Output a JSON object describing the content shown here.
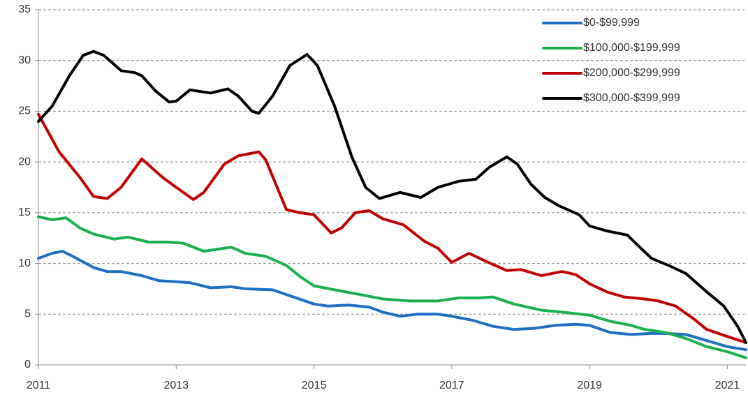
{
  "chart_data": {
    "type": "line",
    "xlim": [
      2011,
      2021.27
    ],
    "xticks": [
      2011,
      2013,
      2015,
      2017,
      2019,
      2021
    ],
    "ylim": [
      0,
      35
    ],
    "yticks": [
      0,
      5,
      10,
      15,
      20,
      25,
      30,
      35
    ],
    "grid": true,
    "legend": "upper right",
    "series": [
      {
        "name": "$0-$99,999",
        "color": "#1f6fc5",
        "x": [
          2011,
          2011.2,
          2011.35,
          2011.5,
          2011.8,
          2012.0,
          2012.2,
          2012.5,
          2012.75,
          2013.0,
          2013.2,
          2013.5,
          2013.8,
          2014.0,
          2014.4,
          2014.7,
          2015.0,
          2015.2,
          2015.5,
          2015.8,
          2016.0,
          2016.25,
          2016.5,
          2016.8,
          2017.0,
          2017.3,
          2017.6,
          2017.9,
          2018.2,
          2018.5,
          2018.8,
          2019.0,
          2019.3,
          2019.6,
          2019.9,
          2020.1,
          2020.4,
          2020.7,
          2021.0,
          2021.27
        ],
        "values": [
          10.5,
          11,
          11.2,
          10.7,
          9.6,
          9.2,
          9.2,
          8.8,
          8.3,
          8.2,
          8.1,
          7.6,
          7.7,
          7.5,
          7.4,
          6.7,
          6.0,
          5.8,
          5.9,
          5.7,
          5.2,
          4.8,
          5,
          5,
          4.8,
          4.4,
          3.8,
          3.5,
          3.6,
          3.9,
          4,
          3.9,
          3.2,
          3,
          3.1,
          3.1,
          3,
          2.4,
          1.8,
          1.5
        ]
      },
      {
        "name": "$100,000-$199,999",
        "color": "#1ab04c",
        "x": [
          2011,
          2011.2,
          2011.4,
          2011.6,
          2011.8,
          2012.1,
          2012.3,
          2012.6,
          2012.9,
          2013.1,
          2013.4,
          2013.8,
          2014.0,
          2014.3,
          2014.6,
          2014.8,
          2015.0,
          2015.3,
          2015.7,
          2016.0,
          2016.4,
          2016.8,
          2017.1,
          2017.4,
          2017.6,
          2017.9,
          2018.3,
          2018.6,
          2019.0,
          2019.3,
          2019.6,
          2019.8,
          2020.1,
          2020.4,
          2020.7,
          2021.0,
          2021.27
        ],
        "values": [
          14.6,
          14.3,
          14.5,
          13.5,
          12.9,
          12.4,
          12.6,
          12.1,
          12.1,
          12,
          11.2,
          11.6,
          11,
          10.7,
          9.8,
          8.7,
          7.8,
          7.4,
          6.9,
          6.5,
          6.3,
          6.3,
          6.6,
          6.6,
          6.7,
          6,
          5.4,
          5.2,
          4.9,
          4.3,
          3.9,
          3.5,
          3.2,
          2.6,
          1.8,
          1.3,
          0.7
        ]
      },
      {
        "name": "$200,000-$299,999",
        "color": "#c00000",
        "x": [
          2011,
          2011.3,
          2011.6,
          2011.8,
          2012.0,
          2012.2,
          2012.5,
          2012.8,
          2013.0,
          2013.25,
          2013.4,
          2013.7,
          2013.9,
          2014.2,
          2014.3,
          2014.6,
          2014.8,
          2015.0,
          2015.25,
          2015.4,
          2015.6,
          2015.8,
          2016.0,
          2016.3,
          2016.6,
          2016.8,
          2017.0,
          2017.25,
          2017.5,
          2017.8,
          2018.0,
          2018.3,
          2018.6,
          2018.8,
          2019.0,
          2019.25,
          2019.5,
          2019.8,
          2020.0,
          2020.25,
          2020.5,
          2020.7,
          2021.0,
          2021.27
        ],
        "values": [
          24.7,
          21,
          18.5,
          16.6,
          16.4,
          17.5,
          20.3,
          18.5,
          17.5,
          16.3,
          17,
          19.8,
          20.6,
          21,
          20.2,
          15.3,
          15,
          14.8,
          13,
          13.5,
          15,
          15.2,
          14.4,
          13.8,
          12.2,
          11.5,
          10.1,
          11,
          10.2,
          9.3,
          9.4,
          8.8,
          9.2,
          8.9,
          8,
          7.2,
          6.7,
          6.5,
          6.3,
          5.8,
          4.6,
          3.5,
          2.8,
          2.2
        ]
      },
      {
        "name": "$300,000-$399,999",
        "color": "#000000",
        "x": [
          2011,
          2011.2,
          2011.45,
          2011.65,
          2011.8,
          2011.95,
          2012.2,
          2012.4,
          2012.5,
          2012.7,
          2012.9,
          2013.0,
          2013.2,
          2013.5,
          2013.75,
          2013.9,
          2014.1,
          2014.2,
          2014.4,
          2014.65,
          2014.9,
          2015.05,
          2015.3,
          2015.55,
          2015.75,
          2015.95,
          2016.25,
          2016.55,
          2016.8,
          2017.1,
          2017.35,
          2017.55,
          2017.8,
          2017.95,
          2018.15,
          2018.35,
          2018.55,
          2018.85,
          2019.0,
          2019.25,
          2019.55,
          2019.7,
          2019.9,
          2020.15,
          2020.4,
          2020.7,
          2020.95,
          2021.15,
          2021.27
        ],
        "values": [
          24,
          25.5,
          28.5,
          30.5,
          30.9,
          30.5,
          29,
          28.8,
          28.5,
          27,
          25.9,
          26,
          27.1,
          26.8,
          27.2,
          26.5,
          25,
          24.8,
          26.5,
          29.5,
          30.6,
          29.5,
          25.5,
          20.5,
          17.5,
          16.4,
          17,
          16.5,
          17.5,
          18.1,
          18.3,
          19.5,
          20.5,
          19.8,
          17.8,
          16.5,
          15.7,
          14.8,
          13.7,
          13.2,
          12.8,
          11.8,
          10.5,
          9.8,
          9,
          7.2,
          5.8,
          3.8,
          2.2
        ]
      }
    ]
  }
}
